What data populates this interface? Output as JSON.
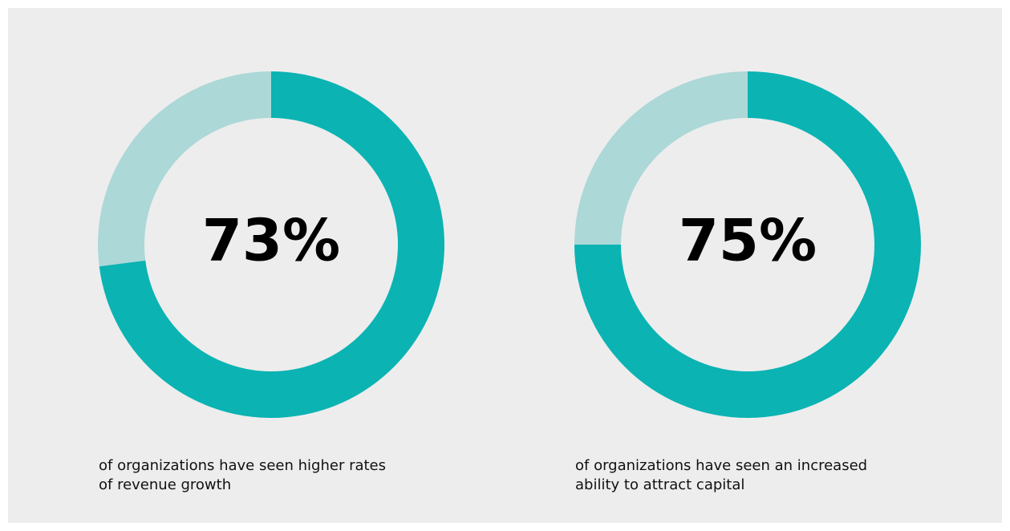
{
  "chart_data": [
    {
      "type": "donut",
      "values": [
        73,
        27
      ],
      "value_labels": [
        "73%",
        null
      ],
      "colors": [
        "#0bb3b3",
        "#acd8d7"
      ],
      "caption": [
        "of organizations have seen higher rates",
        "of revenue growth"
      ]
    },
    {
      "type": "donut",
      "values": [
        75,
        25
      ],
      "value_labels": [
        "75%",
        null
      ],
      "colors": [
        "#0bb3b3",
        "#acd8d7"
      ],
      "caption": [
        "of organizations have seen an increased",
        "ability to attract capital"
      ]
    }
  ]
}
